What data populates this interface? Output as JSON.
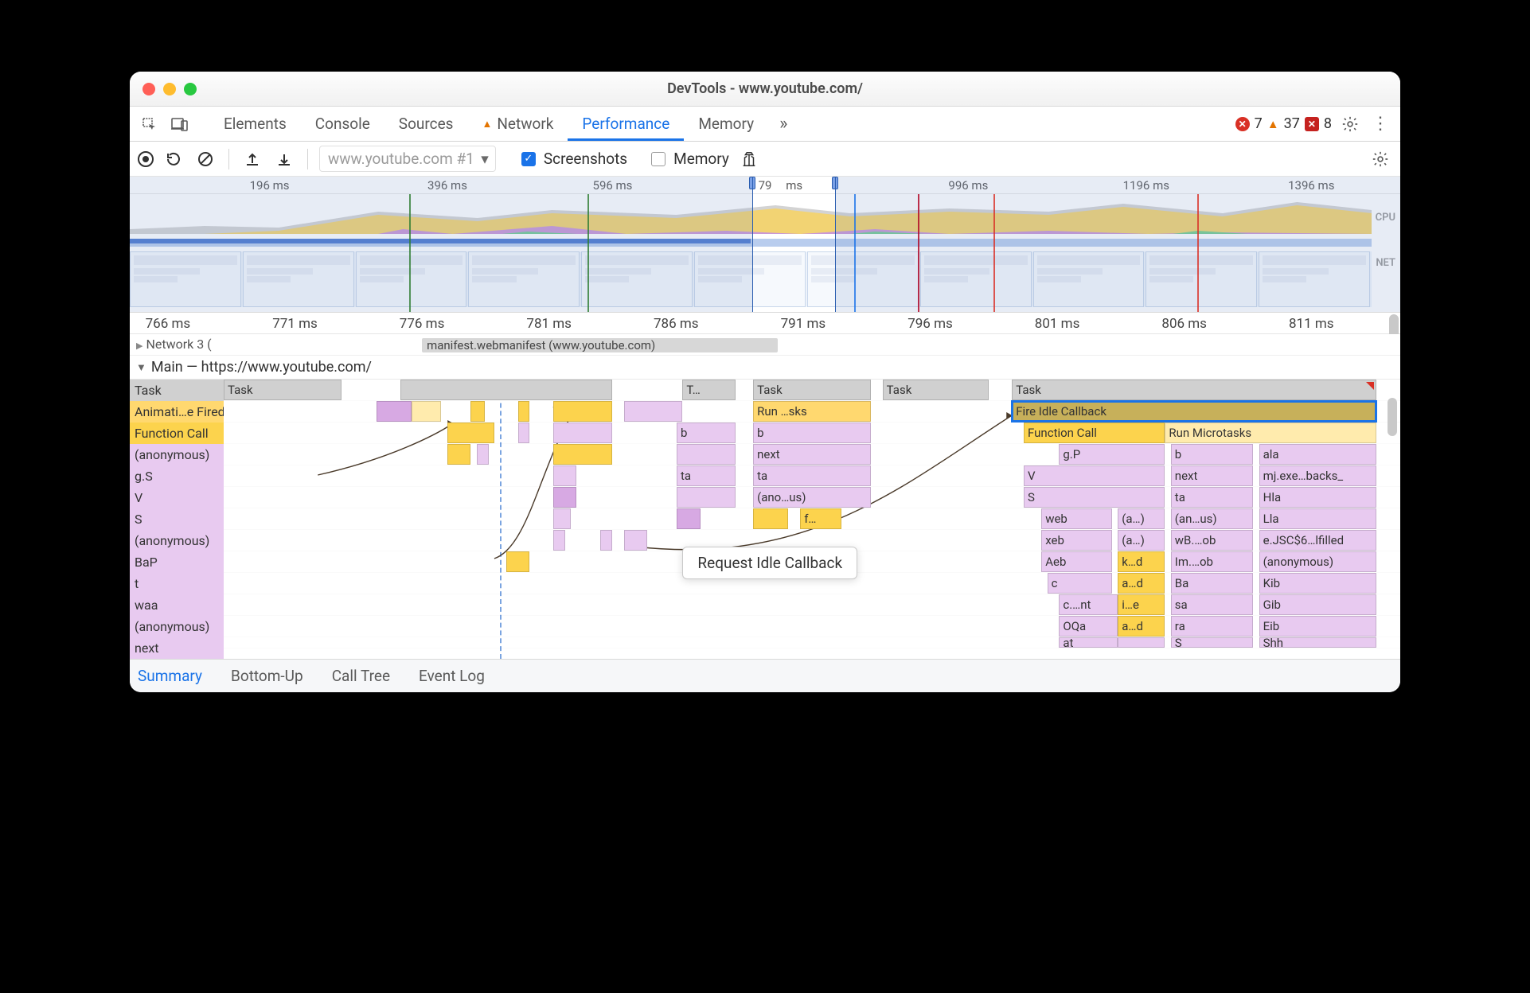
{
  "window": {
    "title": "DevTools - www.youtube.com/"
  },
  "devtools_tabs": {
    "items": [
      "Elements",
      "Console",
      "Sources",
      "Network",
      "Performance",
      "Memory"
    ],
    "active": "Performance",
    "warn_tab": "Network",
    "alerts": {
      "error_color": "#d93025",
      "error_count": "7",
      "warning_color": "#e37400",
      "warning_count": "37",
      "violation_color": "#c5221f",
      "violation_count": "8"
    }
  },
  "toolbar": {
    "dropdown": "www.youtube.com #1",
    "screenshots_label": "Screenshots",
    "screenshots_checked": true,
    "memory_label": "Memory",
    "memory_checked": false
  },
  "overview": {
    "labels": {
      "cpu": "CPU",
      "net": "NET"
    },
    "ticks": [
      {
        "label": "196 ms",
        "pct": 11
      },
      {
        "label": "396 ms",
        "pct": 25
      },
      {
        "label": "596 ms",
        "pct": 38
      },
      {
        "label": "79",
        "pct": 50
      },
      {
        "label": "ms",
        "pct": 52.3
      },
      {
        "label": "996 ms",
        "pct": 66
      },
      {
        "label": "1196 ms",
        "pct": 80
      },
      {
        "label": "1396 ms",
        "pct": 93
      }
    ],
    "cpu_colors": {
      "js": "#f4d36a",
      "layout": "#c792e0",
      "paint": "#6fcf8f",
      "gray": "#cfcfcf"
    },
    "net": {
      "fg": "#4d7ad1",
      "bg": "#b9cdee"
    },
    "viewport": {
      "start_pct": 49,
      "end_pct": 55.5
    },
    "markers": [
      {
        "pct": 22,
        "color": "#2e7d32"
      },
      {
        "pct": 36,
        "color": "#2e7d32"
      },
      {
        "pct": 57,
        "color": "#1a73e8"
      },
      {
        "pct": 62,
        "color": "#b00020"
      },
      {
        "pct": 68,
        "color": "#d93025"
      },
      {
        "pct": 84,
        "color": "#d93025"
      }
    ]
  },
  "detail_ruler": {
    "ticks": [
      {
        "label": "766 ms",
        "pct": 3
      },
      {
        "label": "771 ms",
        "pct": 13
      },
      {
        "label": "776 ms",
        "pct": 23
      },
      {
        "label": "781 ms",
        "pct": 33
      },
      {
        "label": "786 ms",
        "pct": 43
      },
      {
        "label": "791 ms",
        "pct": 53
      },
      {
        "label": "796 ms",
        "pct": 63
      },
      {
        "label": "801 ms",
        "pct": 73
      },
      {
        "label": "806 ms",
        "pct": 83
      },
      {
        "label": "811 ms",
        "pct": 93
      }
    ]
  },
  "network_track": {
    "header": "Network  3 (",
    "chip": {
      "label": "manifest.webmanifest (www.youtube.com)",
      "left_pct": 23,
      "width_pct": 28
    }
  },
  "main_track": {
    "header": "Main — https://www.youtube.com/",
    "guide_pct": 23.5,
    "rows": [
      {
        "gutter": "Task",
        "gutter_cls": "task",
        "blocks": [
          {
            "txt": "Task",
            "l": 0,
            "w": 10,
            "cls": "task"
          },
          {
            "txt": "",
            "l": 15,
            "w": 18,
            "cls": "task"
          },
          {
            "txt": "T…",
            "l": 39,
            "w": 4.5,
            "cls": "task"
          },
          {
            "txt": "Task",
            "l": 45,
            "w": 10,
            "cls": "task"
          },
          {
            "txt": "Task",
            "l": 56,
            "w": 9,
            "cls": "task"
          },
          {
            "txt": "Task",
            "l": 67,
            "w": 31,
            "cls": "task",
            "flag": true
          }
        ]
      },
      {
        "gutter": "Animati…e Fired",
        "gutter_cls": "ytask",
        "blocks": [
          {
            "txt": "",
            "l": 13,
            "w": 3,
            "cls": "fn2"
          },
          {
            "txt": "",
            "l": 16,
            "w": 2.5,
            "cls": "micro"
          },
          {
            "txt": "",
            "l": 21,
            "w": 1.2,
            "cls": "script"
          },
          {
            "txt": "",
            "l": 25,
            "w": 1,
            "cls": "script"
          },
          {
            "txt": "",
            "l": 28,
            "w": 5,
            "cls": "script"
          },
          {
            "txt": "",
            "l": 34,
            "w": 5,
            "cls": "fn"
          },
          {
            "txt": "Run …sks",
            "l": 45,
            "w": 10,
            "cls": "ytask"
          },
          {
            "txt": "Fire Idle Callback",
            "l": 67,
            "w": 31,
            "cls": "sel"
          }
        ]
      },
      {
        "gutter": "Function Call",
        "gutter_cls": "script",
        "blocks": [
          {
            "txt": "",
            "l": 19,
            "w": 4,
            "cls": "script"
          },
          {
            "txt": "",
            "l": 25,
            "w": 1,
            "cls": "fn"
          },
          {
            "txt": "",
            "l": 28,
            "w": 5,
            "cls": "fn"
          },
          {
            "txt": "b",
            "l": 38.5,
            "w": 5,
            "cls": "fn"
          },
          {
            "txt": "b",
            "l": 45,
            "w": 10,
            "cls": "fn"
          },
          {
            "txt": "Function Call",
            "l": 68,
            "w": 12,
            "cls": "script"
          },
          {
            "txt": "Run Microtasks",
            "l": 80,
            "w": 18,
            "cls": "micro"
          }
        ]
      },
      {
        "gutter": "(anonymous)",
        "gutter_cls": "fn",
        "blocks": [
          {
            "txt": "",
            "l": 19,
            "w": 2,
            "cls": "script"
          },
          {
            "txt": "",
            "l": 21.5,
            "w": 1,
            "cls": "fn"
          },
          {
            "txt": "",
            "l": 28,
            "w": 5,
            "cls": "script"
          },
          {
            "txt": "",
            "l": 38.5,
            "w": 5,
            "cls": "fn"
          },
          {
            "txt": "next",
            "l": 45,
            "w": 10,
            "cls": "fn"
          },
          {
            "txt": "g.P",
            "l": 71,
            "w": 9,
            "cls": "fn"
          },
          {
            "txt": "b",
            "l": 80.5,
            "w": 7,
            "cls": "fn"
          },
          {
            "txt": "ala",
            "l": 88,
            "w": 10,
            "cls": "fn"
          }
        ]
      },
      {
        "gutter": "g.S",
        "gutter_cls": "fn",
        "blocks": [
          {
            "txt": "",
            "l": 28,
            "w": 2,
            "cls": "fn"
          },
          {
            "txt": "ta",
            "l": 38.5,
            "w": 5,
            "cls": "fn"
          },
          {
            "txt": "ta",
            "l": 45,
            "w": 10,
            "cls": "fn"
          },
          {
            "txt": "V",
            "l": 68,
            "w": 12,
            "cls": "fn"
          },
          {
            "txt": "next",
            "l": 80.5,
            "w": 7,
            "cls": "fn"
          },
          {
            "txt": "mj.exe…backs_",
            "l": 88,
            "w": 10,
            "cls": "fn"
          }
        ]
      },
      {
        "gutter": "V",
        "gutter_cls": "fn",
        "blocks": [
          {
            "txt": "",
            "l": 28,
            "w": 2,
            "cls": "fn2"
          },
          {
            "txt": "",
            "l": 38.5,
            "w": 5,
            "cls": "fn"
          },
          {
            "txt": "(ano…us)",
            "l": 45,
            "w": 10,
            "cls": "fn"
          },
          {
            "txt": "S",
            "l": 68,
            "w": 12,
            "cls": "fn"
          },
          {
            "txt": "ta",
            "l": 80.5,
            "w": 7,
            "cls": "fn"
          },
          {
            "txt": "Hla",
            "l": 88,
            "w": 10,
            "cls": "fn"
          }
        ]
      },
      {
        "gutter": "S",
        "gutter_cls": "fn",
        "blocks": [
          {
            "txt": "",
            "l": 28,
            "w": 1.5,
            "cls": "fn"
          },
          {
            "txt": "",
            "l": 38.5,
            "w": 2,
            "cls": "fn2"
          },
          {
            "txt": "",
            "l": 45,
            "w": 3,
            "cls": "script"
          },
          {
            "txt": "f…",
            "l": 49,
            "w": 3.5,
            "cls": "script"
          },
          {
            "txt": "web",
            "l": 69.5,
            "w": 6,
            "cls": "fn"
          },
          {
            "txt": "(a…)",
            "l": 76,
            "w": 4,
            "cls": "fn"
          },
          {
            "txt": "(an…us)",
            "l": 80.5,
            "w": 7,
            "cls": "fn"
          },
          {
            "txt": "Lla",
            "l": 88,
            "w": 10,
            "cls": "fn"
          }
        ]
      },
      {
        "gutter": "(anonymous)",
        "gutter_cls": "fn",
        "blocks": [
          {
            "txt": "",
            "l": 28,
            "w": 1,
            "cls": "fn"
          },
          {
            "txt": "",
            "l": 32,
            "w": 1,
            "cls": "fn"
          },
          {
            "txt": "",
            "l": 34,
            "w": 2,
            "cls": "fn"
          },
          {
            "txt": "xeb",
            "l": 69.5,
            "w": 6,
            "cls": "fn"
          },
          {
            "txt": "(a…)",
            "l": 76,
            "w": 4,
            "cls": "fn"
          },
          {
            "txt": "wB.…ob",
            "l": 80.5,
            "w": 7,
            "cls": "fn"
          },
          {
            "txt": "e.JSC$6…lfilled",
            "l": 88,
            "w": 10,
            "cls": "fn"
          }
        ]
      },
      {
        "gutter": "BaP",
        "gutter_cls": "fn",
        "blocks": [
          {
            "txt": "",
            "l": 24,
            "w": 2,
            "cls": "script"
          },
          {
            "txt": "Aeb",
            "l": 69.5,
            "w": 6,
            "cls": "fn"
          },
          {
            "txt": "k…d",
            "l": 76,
            "w": 4,
            "cls": "script"
          },
          {
            "txt": "Im.…ob",
            "l": 80.5,
            "w": 7,
            "cls": "fn"
          },
          {
            "txt": "(anonymous)",
            "l": 88,
            "w": 10,
            "cls": "fn"
          }
        ]
      },
      {
        "gutter": "t",
        "gutter_cls": "fn",
        "blocks": [
          {
            "txt": "c",
            "l": 70,
            "w": 5.5,
            "cls": "fn"
          },
          {
            "txt": "a…d",
            "l": 76,
            "w": 4,
            "cls": "script"
          },
          {
            "txt": "Ba",
            "l": 80.5,
            "w": 7,
            "cls": "fn"
          },
          {
            "txt": "Kib",
            "l": 88,
            "w": 10,
            "cls": "fn"
          }
        ]
      },
      {
        "gutter": "waa",
        "gutter_cls": "fn",
        "blocks": [
          {
            "txt": "c.…nt",
            "l": 71,
            "w": 5,
            "cls": "fn"
          },
          {
            "txt": "i…e",
            "l": 76,
            "w": 4,
            "cls": "script"
          },
          {
            "txt": "sa",
            "l": 80.5,
            "w": 7,
            "cls": "fn"
          },
          {
            "txt": "Gib",
            "l": 88,
            "w": 10,
            "cls": "fn"
          }
        ]
      },
      {
        "gutter": "(anonymous)",
        "gutter_cls": "fn",
        "blocks": [
          {
            "txt": "OQa",
            "l": 71,
            "w": 5,
            "cls": "fn"
          },
          {
            "txt": "a…d",
            "l": 76,
            "w": 4,
            "cls": "script"
          },
          {
            "txt": "ra",
            "l": 80.5,
            "w": 7,
            "cls": "fn"
          },
          {
            "txt": "Eib",
            "l": 88,
            "w": 10,
            "cls": "fn"
          }
        ]
      },
      {
        "gutter": "next",
        "gutter_cls": "fn",
        "cut": true,
        "blocks": [
          {
            "txt": "at",
            "l": 71,
            "w": 5,
            "cls": "fn"
          },
          {
            "txt": "",
            "l": 76,
            "w": 4,
            "cls": "fn"
          },
          {
            "txt": "S",
            "l": 80.5,
            "w": 7,
            "cls": "fn"
          },
          {
            "txt": "Shh",
            "l": 88,
            "w": 10,
            "cls": "fn"
          }
        ]
      }
    ],
    "tooltip": {
      "text": "Request Idle Callback",
      "left_pct": 39,
      "row": 8
    }
  },
  "bottom_tabs": {
    "items": [
      "Summary",
      "Bottom-Up",
      "Call Tree",
      "Event Log"
    ],
    "active": "Summary"
  }
}
